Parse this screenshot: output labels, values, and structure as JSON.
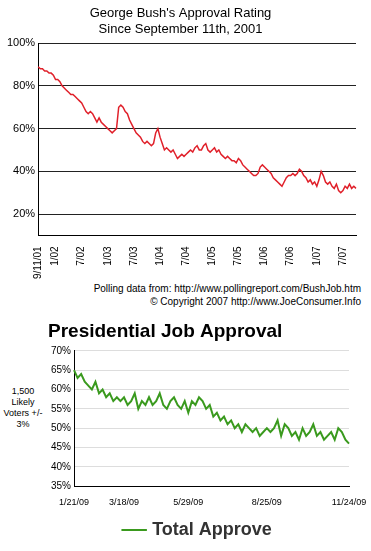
{
  "chart_data": [
    {
      "type": "line",
      "title": "George Bush's Approval Rating",
      "subtitle": "Since September 11th, 2001",
      "annotations": [
        "Polling data from: http://www.pollingreport.com/BushJob.htm",
        "© Copyright 2007 http://www.JoeConsumer.Info"
      ],
      "categories": [
        "9/11/01",
        null,
        null,
        null,
        null,
        null,
        null,
        null,
        "1/02",
        null,
        null,
        null,
        null,
        null,
        null,
        null,
        null,
        null,
        null,
        null,
        "7/02",
        null,
        null,
        null,
        null,
        null,
        null,
        null,
        null,
        null,
        null,
        null,
        "1/03",
        null,
        null,
        null,
        null,
        null,
        null,
        null,
        null,
        null,
        null,
        null,
        "7/03",
        null,
        null,
        null,
        null,
        null,
        null,
        null,
        null,
        null,
        null,
        null,
        "1/04",
        null,
        null,
        null,
        null,
        null,
        null,
        null,
        null,
        null,
        null,
        null,
        "7/04",
        null,
        null,
        null,
        null,
        null,
        null,
        null,
        null,
        null,
        null,
        null,
        "1/05",
        null,
        null,
        null,
        null,
        null,
        null,
        null,
        null,
        null,
        null,
        null,
        "7/05",
        null,
        null,
        null,
        null,
        null,
        null,
        null,
        null,
        null,
        null,
        null,
        "1/06",
        null,
        null,
        null,
        null,
        null,
        null,
        null,
        null,
        null,
        null,
        null,
        "7/06",
        null,
        null,
        null,
        null,
        null,
        null,
        null,
        null,
        null,
        null,
        null,
        "1/07",
        null,
        null,
        null,
        null,
        null,
        null,
        null,
        null,
        null,
        null,
        null,
        "7/07",
        null,
        null,
        null,
        null,
        null,
        null
      ],
      "values": [
        89,
        88,
        88,
        87,
        87,
        86,
        86,
        85,
        83,
        83,
        82,
        80,
        79,
        78,
        77,
        76,
        76,
        75,
        74,
        73,
        72,
        70,
        68,
        67,
        68,
        67,
        65,
        63,
        65,
        63,
        62,
        61,
        60,
        59,
        58,
        59,
        60,
        70,
        71,
        70,
        68,
        67,
        64,
        62,
        60,
        58,
        57,
        56,
        54,
        53,
        54,
        53,
        52,
        53,
        58,
        60,
        56,
        53,
        50,
        51,
        50,
        49,
        50,
        48,
        46,
        47,
        48,
        47,
        48,
        49,
        50,
        49,
        51,
        52,
        50,
        50,
        52,
        53,
        50,
        49,
        50,
        51,
        49,
        50,
        48,
        47,
        46,
        47,
        46,
        45,
        45,
        44,
        46,
        45,
        43,
        42,
        41,
        40,
        39,
        38,
        38,
        39,
        42,
        43,
        42,
        41,
        40,
        39,
        37,
        36,
        35,
        34,
        33,
        35,
        37,
        38,
        38,
        39,
        38,
        39,
        41,
        40,
        38,
        37,
        35,
        36,
        34,
        35,
        33,
        36,
        40,
        38,
        35,
        34,
        35,
        33,
        32,
        34,
        31,
        30,
        31,
        33,
        32,
        34,
        32,
        33,
        32
      ],
      "color": "#e0202a",
      "ylim": [
        10,
        100
      ],
      "yticks": [
        {
          "value": 20,
          "label": "20%"
        },
        {
          "value": 40,
          "label": "40%"
        },
        {
          "value": 60,
          "label": "60%"
        },
        {
          "value": 80,
          "label": "80%"
        },
        {
          "value": 100,
          "label": "100%"
        }
      ],
      "grid": true
    },
    {
      "type": "line",
      "title": "Presidential Job Approval",
      "annotations": [
        "1,500 Likely Voters +/- 3%"
      ],
      "categories": [
        "1/21/09",
        null,
        null,
        null,
        null,
        null,
        null,
        null,
        null,
        null,
        null,
        null,
        null,
        null,
        "3/18/09",
        null,
        null,
        null,
        null,
        null,
        null,
        null,
        null,
        null,
        null,
        null,
        null,
        null,
        null,
        null,
        null,
        null,
        "5/29/09",
        null,
        null,
        null,
        null,
        null,
        null,
        null,
        null,
        null,
        null,
        null,
        null,
        null,
        null,
        null,
        null,
        null,
        null,
        null,
        null,
        null,
        "8/25/09",
        null,
        null,
        null,
        null,
        null,
        null,
        null,
        null,
        null,
        null,
        null,
        null,
        null,
        null,
        null,
        null,
        null,
        null,
        null,
        null,
        null,
        null,
        "11/24/09"
      ],
      "series": [
        {
          "name": "Total Approve",
          "color": "#3a9a1e",
          "values": [
            65,
            63,
            64,
            62,
            61,
            60,
            62,
            59,
            60,
            58,
            59,
            57,
            58,
            57,
            58,
            56,
            57,
            59,
            55,
            57,
            56,
            58,
            56,
            57,
            59,
            56,
            55,
            57,
            58,
            56,
            55,
            57,
            54,
            57,
            56,
            58,
            57,
            55,
            56,
            53,
            54,
            52,
            53,
            51,
            52,
            50,
            51,
            49,
            51,
            50,
            49,
            50,
            48,
            49,
            50,
            49,
            50,
            52,
            48,
            51,
            50,
            48,
            49,
            47,
            50,
            48,
            49,
            51,
            48,
            49,
            47,
            48,
            49,
            47,
            50,
            49,
            47,
            46
          ]
        }
      ],
      "ylim": [
        35,
        70
      ],
      "yticks": [
        {
          "value": 35,
          "label": "35%"
        },
        {
          "value": 40,
          "label": "40%"
        },
        {
          "value": 45,
          "label": "45%"
        },
        {
          "value": 50,
          "label": "50%"
        },
        {
          "value": 55,
          "label": "55%"
        },
        {
          "value": 60,
          "label": "60%"
        },
        {
          "value": 65,
          "label": "65%"
        },
        {
          "value": 70,
          "label": "70%"
        }
      ],
      "grid": true,
      "legend": "bottom"
    }
  ]
}
